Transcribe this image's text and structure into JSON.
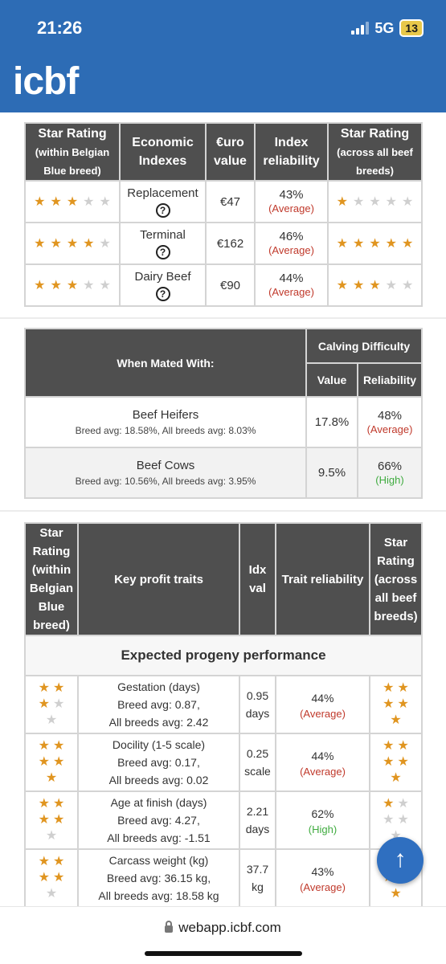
{
  "status": {
    "time": "21:26",
    "network": "5G",
    "battery": "13"
  },
  "header": {
    "logo": "icbf"
  },
  "indexes": {
    "headers": {
      "star_within": "Star Rating",
      "star_within_sub": "(within Belgian Blue breed)",
      "economic": "Economic Indexes",
      "euro": "€uro value",
      "reliability": "Index reliability",
      "star_across": "Star Rating",
      "star_across_sub": "(across all beef breeds)"
    },
    "rows": [
      {
        "name": "Replacement",
        "help": "?",
        "value": "€47",
        "rel": "43%",
        "rel_level": "(Average)",
        "stars_within": 3,
        "stars_across": 1
      },
      {
        "name": "Terminal",
        "help": "?",
        "value": "€162",
        "rel": "46%",
        "rel_level": "(Average)",
        "stars_within": 4,
        "stars_across": 5
      },
      {
        "name": "Dairy Beef",
        "help": "?",
        "value": "€90",
        "rel": "44%",
        "rel_level": "(Average)",
        "stars_within": 3,
        "stars_across": 3
      }
    ]
  },
  "calving": {
    "headers": {
      "mated": "When Mated With:",
      "difficulty": "Calving Difficulty",
      "value": "Value",
      "reliability": "Reliability"
    },
    "rows": [
      {
        "name": "Beef Heifers",
        "avg": "Breed avg: 18.58%, All breeds avg: 8.03%",
        "value": "17.8%",
        "rel": "48%",
        "rel_level": "(Average)"
      },
      {
        "name": "Beef Cows",
        "avg": "Breed avg: 10.56%, All breeds avg: 3.95%",
        "value": "9.5%",
        "rel": "66%",
        "rel_level": "(High)"
      }
    ]
  },
  "traits": {
    "headers": {
      "star_within": "Star Rating (within Belgian Blue breed)",
      "key": "Key profit traits",
      "idx": "Idx val",
      "reliability": "Trait reliability",
      "star_across": "Star Rating (across all beef breeds)"
    },
    "section": "Expected progeny performance",
    "rows": [
      {
        "name": "Gestation (days)",
        "breed_avg": "Breed avg: 0.87,",
        "all_avg": "All breeds avg: 2.42",
        "value": "0.95",
        "unit": "days",
        "rel": "44%",
        "rel_level": "(Average)",
        "stars_within": 3,
        "stars_across": 5
      },
      {
        "name": "Docility (1-5 scale)",
        "breed_avg": "Breed avg: 0.17,",
        "all_avg": "All breeds avg: 0.02",
        "value": "0.25",
        "unit": "scale",
        "rel": "44%",
        "rel_level": "(Average)",
        "stars_within": 5,
        "stars_across": 5
      },
      {
        "name": "Age at finish (days)",
        "breed_avg": "Breed avg: 4.27,",
        "all_avg": "All breeds avg: -1.51",
        "value": "2.21",
        "unit": "days",
        "rel": "62%",
        "rel_level": "(High)",
        "stars_within": 4,
        "stars_across": 1
      },
      {
        "name": "Carcass weight (kg)",
        "breed_avg": "Breed avg: 36.15 kg,",
        "all_avg": "All breeds avg: 18.58 kg",
        "value": "37.7",
        "unit": "kg",
        "rel": "43%",
        "rel_level": "(Average)",
        "stars_within": 4,
        "stars_across": 5
      }
    ]
  },
  "footer": {
    "url": "webapp.icbf.com"
  },
  "colors": {
    "header": "#2d6cb5",
    "table_header": "#4f4f4f",
    "star": "#e09520",
    "average": "#c0392b",
    "high": "#3fab3f"
  },
  "icons": {
    "scroll_top": "↑",
    "lock": "lock-icon"
  }
}
